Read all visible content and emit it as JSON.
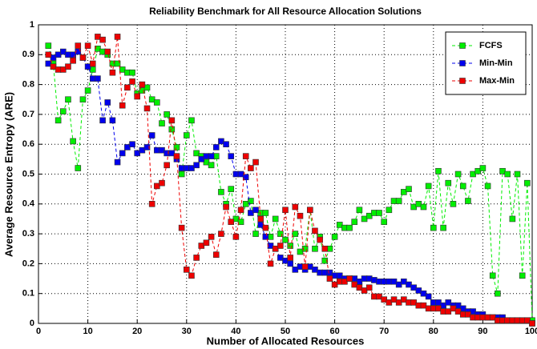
{
  "chart_data": {
    "type": "line",
    "title": "Reliability Benchmark for All Resource Allocation Solutions",
    "x_label": "Number of Allocated Resources",
    "y_label": "Average Resource Entropy (ARE)",
    "x": [
      2,
      3,
      4,
      5,
      6,
      7,
      8,
      9,
      10,
      11,
      12,
      13,
      14,
      15,
      16,
      17,
      18,
      19,
      20,
      21,
      22,
      23,
      24,
      25,
      26,
      27,
      28,
      29,
      30,
      31,
      32,
      33,
      34,
      35,
      36,
      37,
      38,
      39,
      40,
      41,
      42,
      43,
      44,
      45,
      46,
      47,
      48,
      49,
      50,
      51,
      52,
      53,
      54,
      55,
      56,
      57,
      58,
      59,
      60,
      61,
      62,
      63,
      64,
      65,
      66,
      67,
      68,
      69,
      70,
      71,
      72,
      73,
      74,
      75,
      76,
      77,
      78,
      79,
      80,
      81,
      82,
      83,
      84,
      85,
      86,
      87,
      88,
      89,
      90,
      91,
      92,
      93,
      94,
      95,
      96,
      97,
      98,
      99,
      100
    ],
    "series": [
      {
        "name": "FCFS",
        "color": "#00ee00",
        "values": [
          0.93,
          0.87,
          0.68,
          0.71,
          0.75,
          0.61,
          0.52,
          0.75,
          0.78,
          0.85,
          0.92,
          0.91,
          0.9,
          0.87,
          0.87,
          0.85,
          0.84,
          0.84,
          0.77,
          0.78,
          0.79,
          0.75,
          0.74,
          0.67,
          0.7,
          0.65,
          0.59,
          0.5,
          0.63,
          0.68,
          0.57,
          0.56,
          0.54,
          0.53,
          0.56,
          0.44,
          0.4,
          0.45,
          0.35,
          0.34,
          0.4,
          0.41,
          0.3,
          0.37,
          0.37,
          0.29,
          0.35,
          0.3,
          0.28,
          0.26,
          0.3,
          0.24,
          0.25,
          0.38,
          0.25,
          0.29,
          0.21,
          0.25,
          0.29,
          0.33,
          0.32,
          0.32,
          0.34,
          0.38,
          0.35,
          0.36,
          0.37,
          0.37,
          0.34,
          0.38,
          0.41,
          0.41,
          0.44,
          0.45,
          0.39,
          0.4,
          0.39,
          0.46,
          0.32,
          0.51,
          0.32,
          0.47,
          0.4,
          0.5,
          0.46,
          0.41,
          0.5,
          0.51,
          0.52,
          0.46,
          0.16,
          0.1,
          0.51,
          0.5,
          0.35,
          0.5,
          0.16,
          0.47,
          0.01
        ]
      },
      {
        "name": "Min-Min",
        "color": "#0000ee",
        "values": [
          0.87,
          0.89,
          0.9,
          0.91,
          0.9,
          0.9,
          0.91,
          0.89,
          0.86,
          0.82,
          0.82,
          0.68,
          0.74,
          0.68,
          0.54,
          0.57,
          0.59,
          0.6,
          0.57,
          0.58,
          0.59,
          0.63,
          0.58,
          0.58,
          0.57,
          0.57,
          0.55,
          0.52,
          0.52,
          0.52,
          0.53,
          0.55,
          0.56,
          0.56,
          0.59,
          0.61,
          0.6,
          0.56,
          0.5,
          0.5,
          0.49,
          0.37,
          0.38,
          0.33,
          0.29,
          0.26,
          0.25,
          0.22,
          0.21,
          0.2,
          0.18,
          0.19,
          0.18,
          0.19,
          0.18,
          0.17,
          0.17,
          0.17,
          0.16,
          0.16,
          0.15,
          0.15,
          0.15,
          0.14,
          0.15,
          0.15,
          0.145,
          0.14,
          0.14,
          0.14,
          0.14,
          0.13,
          0.14,
          0.13,
          0.12,
          0.11,
          0.1,
          0.09,
          0.07,
          0.07,
          0.06,
          0.07,
          0.06,
          0.06,
          0.05,
          0.04,
          0.04,
          0.03,
          0.03,
          0.02,
          0.02,
          0.02,
          0.02,
          0.01,
          0.01,
          0.01,
          0.01,
          0.01,
          0
        ]
      },
      {
        "name": "Max-Min",
        "color": "#ee0000",
        "values": [
          0.9,
          0.86,
          0.85,
          0.85,
          0.86,
          0.88,
          0.93,
          0.89,
          0.93,
          0.87,
          0.96,
          0.95,
          0.91,
          0.84,
          0.96,
          0.73,
          0.79,
          0.81,
          0.76,
          0.8,
          0.72,
          0.4,
          0.46,
          0.47,
          0.53,
          0.68,
          0.56,
          0.32,
          0.18,
          0.16,
          0.22,
          0.26,
          0.27,
          0.29,
          0.23,
          0.3,
          0.39,
          0.34,
          0.29,
          0.38,
          0.56,
          0.52,
          0.54,
          0.35,
          0.32,
          0.2,
          0.25,
          0.26,
          0.38,
          0.22,
          0.39,
          0.36,
          0.19,
          0.38,
          0.31,
          0.28,
          0.25,
          0.15,
          0.13,
          0.14,
          0.14,
          0.15,
          0.13,
          0.12,
          0.11,
          0.12,
          0.09,
          0.09,
          0.08,
          0.07,
          0.08,
          0.07,
          0.08,
          0.07,
          0.07,
          0.06,
          0.06,
          0.05,
          0.05,
          0.05,
          0.04,
          0.04,
          0.05,
          0.04,
          0.03,
          0.03,
          0.02,
          0.02,
          0.02,
          0.02,
          0.02,
          0.01,
          0.01,
          0.01,
          0.01,
          0.01,
          0.01,
          0.01,
          0
        ]
      }
    ],
    "xlim": [
      0,
      100
    ],
    "xticks": [
      0,
      10,
      20,
      30,
      40,
      50,
      60,
      70,
      80,
      90,
      100
    ],
    "ylim": [
      0,
      1
    ],
    "yticks": [
      0,
      0.1,
      0.2,
      0.3,
      0.4,
      0.5,
      0.6,
      0.7,
      0.8,
      0.9,
      1
    ],
    "grid": true,
    "legend": "upper right"
  }
}
